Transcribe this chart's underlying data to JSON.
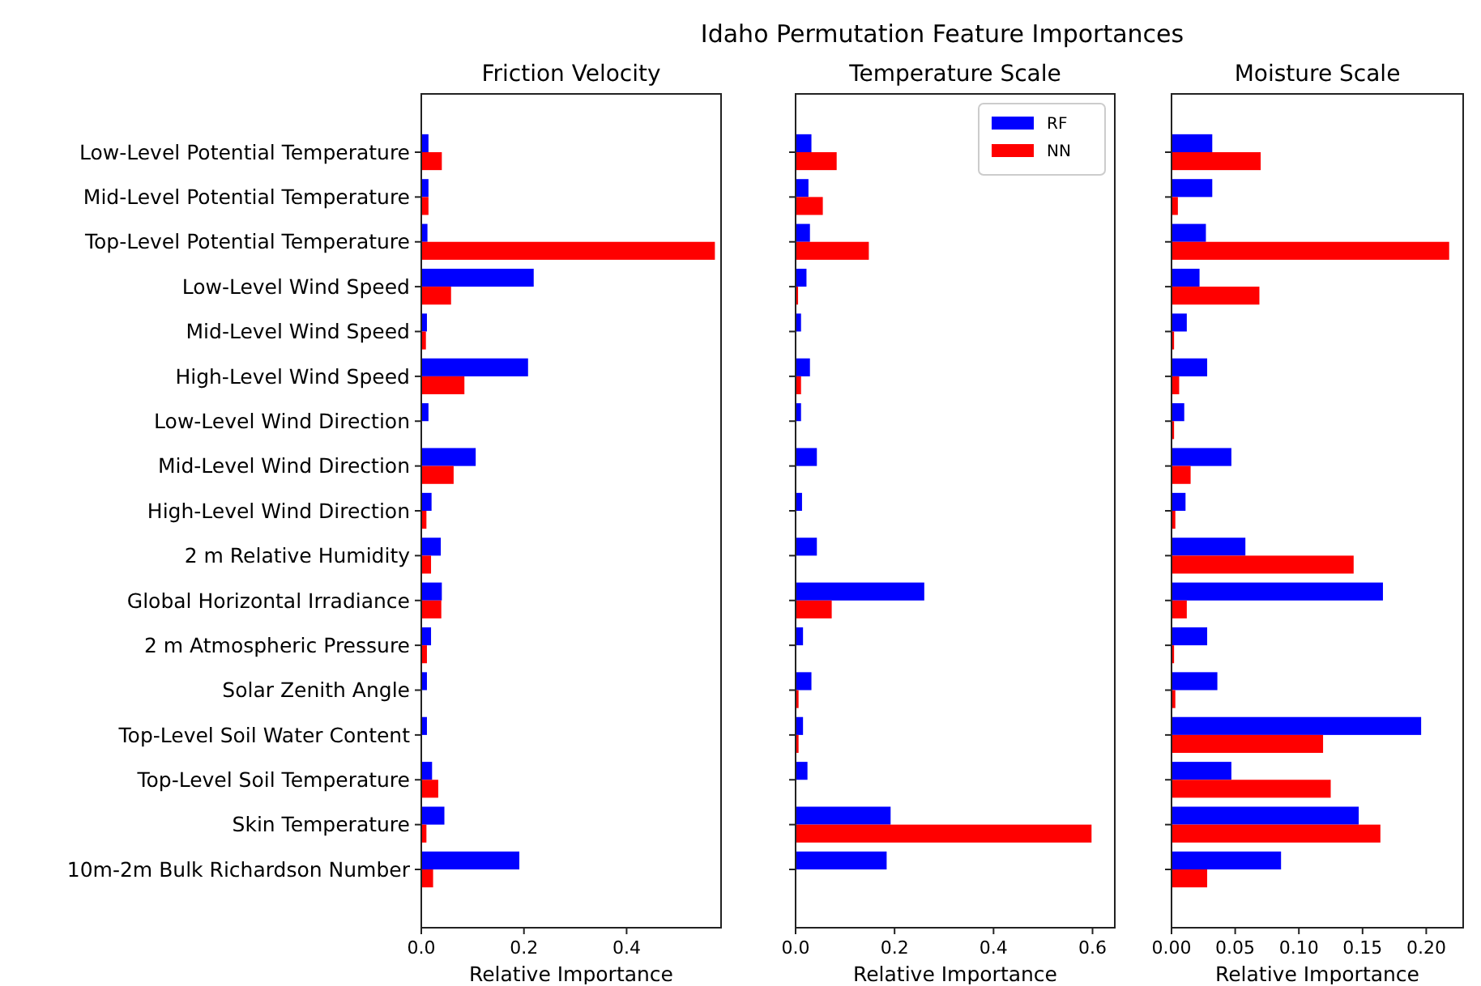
{
  "chart_data": [
    {
      "type": "bar",
      "orientation": "horizontal",
      "title": "Friction Velocity",
      "xlabel": "Relative Importance",
      "annotations": [
        "Idaho Permutation Feature Importances"
      ],
      "categories": [
        "Low-Level Potential Temperature",
        "Mid-Level Potential Temperature",
        "Top-Level Potential Temperature",
        "Low-Level Wind Speed",
        "Mid-Level Wind Speed",
        "High-Level Wind Speed",
        "Low-Level Wind Direction",
        "Mid-Level Wind Direction",
        "High-Level Wind Direction",
        "2 m Relative Humidity",
        "Global Horizontal Irradiance",
        "2 m Atmospheric Pressure",
        "Solar Zenith Angle",
        "Top-Level Soil Water Content",
        "Top-Level Soil Temperature",
        "Skin Temperature",
        "10m-2m Bulk Richardson Number"
      ],
      "xlim": [
        0,
        0.584
      ],
      "xticks": [
        {
          "value": 0,
          "label": "0.0"
        },
        {
          "value": 0.2,
          "label": "0.2"
        },
        {
          "value": 0.4,
          "label": "0.4"
        }
      ],
      "series": [
        {
          "color": "#0000ff",
          "values": [
            0.014,
            0.014,
            0.012,
            0.219,
            0.011,
            0.208,
            0.014,
            0.106,
            0.02,
            0.038,
            0.04,
            0.019,
            0.011,
            0.011,
            0.021,
            0.045,
            0.191
          ]
        },
        {
          "color": "#ff0000",
          "values": [
            0.04,
            0.014,
            0.572,
            0.058,
            0.009,
            0.084,
            null,
            0.063,
            0.01,
            0.019,
            0.039,
            0.011,
            null,
            null,
            0.033,
            0.01,
            0.023
          ]
        }
      ],
      "grid": false,
      "legend": false
    },
    {
      "type": "bar",
      "orientation": "horizontal",
      "title": "Temperature Scale",
      "xlabel": "Relative Importance",
      "tick_labels": "x",
      "categories": [
        null,
        null,
        null,
        null,
        null,
        null,
        null,
        null,
        null,
        null,
        null,
        null,
        null,
        null,
        null,
        null,
        null
      ],
      "xlim": [
        0,
        0.645
      ],
      "xticks": [
        {
          "value": 0,
          "label": "0.0"
        },
        {
          "value": 0.2,
          "label": "0.2"
        },
        {
          "value": 0.4,
          "label": "0.4"
        },
        {
          "value": 0.6,
          "label": "0.6"
        }
      ],
      "series": [
        {
          "name": "RF",
          "color": "#0000ff",
          "values": [
            0.032,
            0.026,
            0.029,
            0.022,
            0.011,
            0.029,
            0.011,
            0.043,
            0.013,
            0.043,
            0.26,
            0.015,
            0.032,
            0.015,
            0.024,
            0.192,
            0.184
          ]
        },
        {
          "name": "NN",
          "color": "#ff0000",
          "values": [
            0.083,
            0.055,
            0.148,
            0.005,
            0,
            0.011,
            0,
            0,
            0,
            0,
            0.073,
            0,
            0.006,
            0.006,
            null,
            0.598,
            0
          ]
        }
      ],
      "grid": false,
      "legend": "top right"
    },
    {
      "type": "bar",
      "orientation": "horizontal",
      "title": "Moisture Scale",
      "xlabel": "Relative Importance",
      "tick_labels": "x",
      "categories": [
        null,
        null,
        null,
        null,
        null,
        null,
        null,
        null,
        null,
        null,
        null,
        null,
        null,
        null,
        null,
        null,
        null
      ],
      "xlim": [
        0,
        0.229
      ],
      "xticks": [
        {
          "value": 0,
          "label": "0.00"
        },
        {
          "value": 0.05,
          "label": "0.05"
        },
        {
          "value": 0.1,
          "label": "0.10"
        },
        {
          "value": 0.15,
          "label": "0.15"
        },
        {
          "value": 0.2,
          "label": "0.20"
        }
      ],
      "series": [
        {
          "color": "#0000ff",
          "values": [
            0.032,
            0.032,
            0.027,
            0.022,
            0.012,
            0.028,
            0.01,
            0.047,
            0.011,
            0.058,
            0.166,
            0.028,
            0.036,
            0.196,
            0.047,
            0.147,
            0.086
          ]
        },
        {
          "color": "#ff0000",
          "values": [
            0.07,
            0.005,
            0.218,
            0.069,
            0.002,
            0.006,
            0.002,
            0.015,
            0.003,
            0.143,
            0.012,
            0.002,
            0.003,
            0.119,
            0.125,
            0.164,
            0.028
          ]
        }
      ],
      "grid": false,
      "legend": false
    }
  ]
}
